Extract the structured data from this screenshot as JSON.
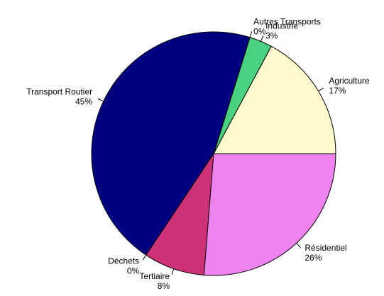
{
  "chart_data": {
    "type": "pie",
    "categories": [
      "Agriculture",
      "Industrie",
      "Autres Transports",
      "Transport Routier",
      "Déchets",
      "Tertiaire",
      "Résidentiel"
    ],
    "values": [
      17,
      3,
      0,
      45,
      0,
      8,
      26
    ],
    "value_labels": [
      "17%",
      "3%",
      "0%",
      "45%",
      "0%",
      "8%",
      "26%"
    ],
    "colors": [
      "#fffacd",
      "#48d17e",
      "#a0a0a0",
      "#000080",
      "#8b4513",
      "#cd3278",
      "#ee82ee"
    ]
  }
}
